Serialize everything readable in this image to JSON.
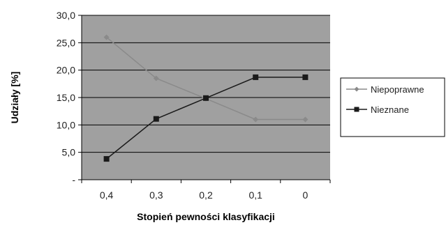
{
  "chart_data": {
    "type": "line",
    "categories": [
      "0,4",
      "0,3",
      "0,2",
      "0,1",
      "0"
    ],
    "series": [
      {
        "name": "Niepoprawne",
        "values": [
          26.0,
          18.5,
          14.8,
          11.0,
          11.0
        ],
        "color": "#8a8a8a",
        "marker": "diamond"
      },
      {
        "name": "Nieznane",
        "values": [
          3.8,
          11.1,
          14.9,
          18.7,
          18.7
        ],
        "color": "#1a1a1a",
        "marker": "square"
      }
    ],
    "yticks": [
      "-",
      "5,0",
      "10,0",
      "15,0",
      "20,0",
      "25,0",
      "30,0"
    ],
    "ylim": [
      0,
      30
    ],
    "xlabel": "Stopień pewności klasyfikacji",
    "ylabel": "Udziały [%]",
    "grid": true,
    "legend": "right",
    "plot_background": "#a0a0a0"
  }
}
